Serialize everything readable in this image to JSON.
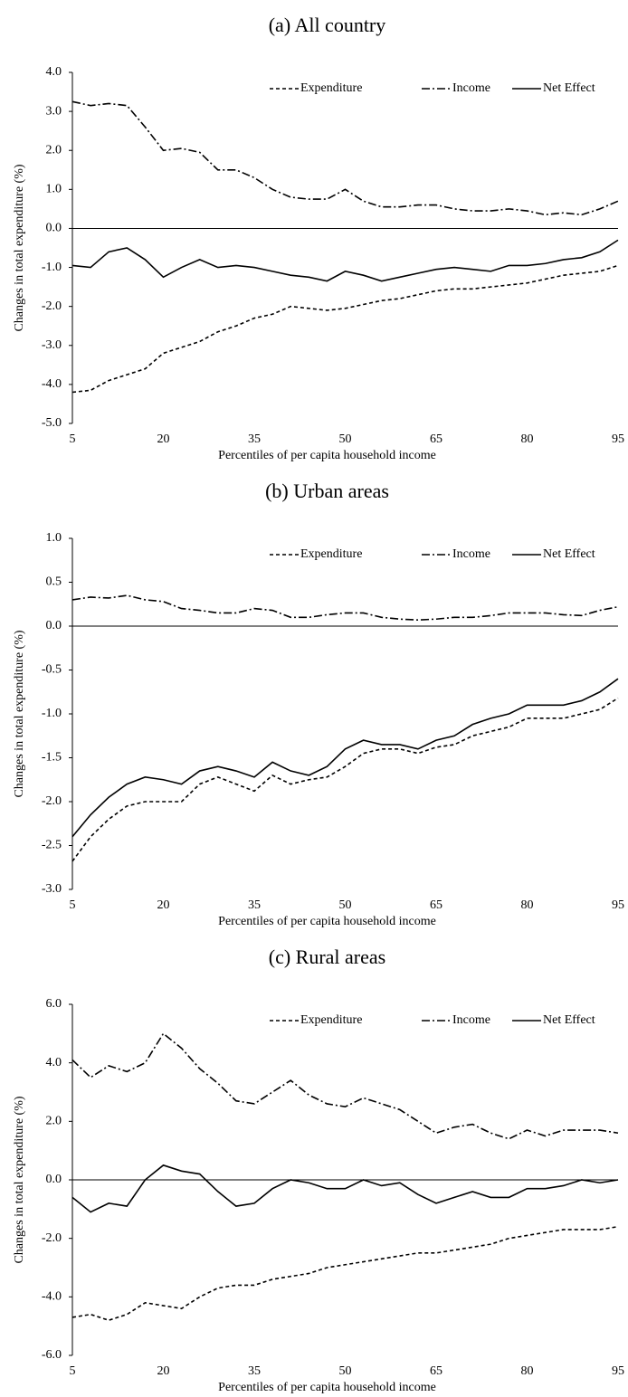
{
  "chart_data": [
    {
      "type": "line",
      "title": "(a) All country",
      "xlabel": "Percentiles of per capita household income",
      "ylabel": "Changes in total expenditure (%)",
      "x": [
        5,
        8,
        11,
        14,
        17,
        20,
        23,
        26,
        29,
        32,
        35,
        38,
        41,
        44,
        47,
        50,
        53,
        56,
        59,
        62,
        65,
        68,
        71,
        74,
        77,
        80,
        83,
        86,
        89,
        92,
        95
      ],
      "xlim": [
        5,
        95
      ],
      "xticks": [
        5,
        20,
        35,
        50,
        65,
        80,
        95
      ],
      "ylim": [
        -5,
        4
      ],
      "yticks": [
        {
          "value": 4,
          "label": "4.0"
        },
        {
          "value": 3,
          "label": "3.0"
        },
        {
          "value": 2,
          "label": "2.0"
        },
        {
          "value": 1,
          "label": "1.0"
        },
        {
          "value": 0,
          "label": "0.0"
        },
        {
          "value": -1,
          "label": "-1.0"
        },
        {
          "value": -2,
          "label": "-2.0"
        },
        {
          "value": -3,
          "label": "-3.0"
        },
        {
          "value": -4,
          "label": "-4.0"
        },
        {
          "value": -5,
          "label": "-5.0"
        }
      ],
      "series": [
        {
          "name": "Expenditure",
          "color": "#000000",
          "line_style": "dashed",
          "values": [
            -4.2,
            -4.15,
            -3.9,
            -3.75,
            -3.6,
            -3.2,
            -3.05,
            -2.9,
            -2.65,
            -2.5,
            -2.3,
            -2.2,
            -2.0,
            -2.05,
            -2.1,
            -2.05,
            -1.95,
            -1.85,
            -1.8,
            -1.7,
            -1.6,
            -1.55,
            -1.55,
            -1.5,
            -1.45,
            -1.4,
            -1.3,
            -1.2,
            -1.15,
            -1.1,
            -0.95
          ]
        },
        {
          "name": "Income",
          "color": "#000000",
          "line_style": "dashdot",
          "values": [
            3.25,
            3.15,
            3.2,
            3.15,
            2.6,
            2.0,
            2.05,
            1.95,
            1.5,
            1.5,
            1.3,
            1.0,
            0.8,
            0.75,
            0.75,
            1.0,
            0.7,
            0.55,
            0.55,
            0.6,
            0.6,
            0.5,
            0.45,
            0.45,
            0.5,
            0.45,
            0.35,
            0.4,
            0.35,
            0.5,
            0.7
          ]
        },
        {
          "name": "Net Effect",
          "color": "#000000",
          "line_style": "solid",
          "values": [
            -0.95,
            -1.0,
            -0.6,
            -0.5,
            -0.8,
            -1.25,
            -1.0,
            -0.8,
            -1.0,
            -0.95,
            -1.0,
            -1.1,
            -1.2,
            -1.25,
            -1.35,
            -1.1,
            -1.2,
            -1.35,
            -1.25,
            -1.15,
            -1.05,
            -1.0,
            -1.05,
            -1.1,
            -0.95,
            -0.95,
            -0.9,
            -0.8,
            -0.75,
            -0.6,
            -0.3
          ]
        }
      ],
      "legend": "top-right",
      "grid": false
    },
    {
      "type": "line",
      "title": "(b) Urban areas",
      "xlabel": "Percentiles of per capita household income",
      "ylabel": "Changes in total expenditure (%)",
      "x": [
        5,
        8,
        11,
        14,
        17,
        20,
        23,
        26,
        29,
        32,
        35,
        38,
        41,
        44,
        47,
        50,
        53,
        56,
        59,
        62,
        65,
        68,
        71,
        74,
        77,
        80,
        83,
        86,
        89,
        92,
        95
      ],
      "xlim": [
        5,
        95
      ],
      "xticks": [
        5,
        20,
        35,
        50,
        65,
        80,
        95
      ],
      "ylim": [
        -3,
        1
      ],
      "yticks": [
        {
          "value": 1,
          "label": "1.0"
        },
        0.5,
        {
          "value": 0,
          "label": "0.0"
        },
        -0.5,
        {
          "value": -1,
          "label": "-1.0"
        },
        -1.5,
        {
          "value": -2,
          "label": "-2.0"
        },
        -2.5,
        {
          "value": -3,
          "label": "-3.0"
        }
      ],
      "series": [
        {
          "name": "Expenditure",
          "color": "#000000",
          "line_style": "dashed",
          "values": [
            -2.68,
            -2.4,
            -2.2,
            -2.05,
            -2.0,
            -2.0,
            -2.0,
            -1.8,
            -1.72,
            -1.8,
            -1.88,
            -1.7,
            -1.8,
            -1.75,
            -1.72,
            -1.6,
            -1.45,
            -1.4,
            -1.4,
            -1.45,
            -1.38,
            -1.35,
            -1.25,
            -1.2,
            -1.15,
            -1.05,
            -1.05,
            -1.05,
            -1.0,
            -0.95,
            -0.82
          ]
        },
        {
          "name": "Income",
          "color": "#000000",
          "line_style": "dashdot",
          "values": [
            0.3,
            0.33,
            0.32,
            0.35,
            0.3,
            0.28,
            0.2,
            0.18,
            0.15,
            0.15,
            0.2,
            0.18,
            0.1,
            0.1,
            0.13,
            0.15,
            0.15,
            0.1,
            0.08,
            0.07,
            0.08,
            0.1,
            0.1,
            0.12,
            0.15,
            0.15,
            0.15,
            0.13,
            0.12,
            0.18,
            0.22
          ]
        },
        {
          "name": "Net Effect",
          "color": "#000000",
          "line_style": "solid",
          "values": [
            -2.4,
            -2.15,
            -1.95,
            -1.8,
            -1.72,
            -1.75,
            -1.8,
            -1.65,
            -1.6,
            -1.65,
            -1.72,
            -1.55,
            -1.65,
            -1.7,
            -1.6,
            -1.4,
            -1.3,
            -1.35,
            -1.35,
            -1.4,
            -1.3,
            -1.25,
            -1.12,
            -1.05,
            -1.0,
            -0.9,
            -0.9,
            -0.9,
            -0.85,
            -0.75,
            -0.6
          ]
        }
      ],
      "legend": "top-right",
      "grid": false
    },
    {
      "type": "line",
      "title": "(c) Rural areas",
      "xlabel": "Percentiles of per capita household income",
      "ylabel": "Changes in total expenditure (%)",
      "x": [
        5,
        8,
        11,
        14,
        17,
        20,
        23,
        26,
        29,
        32,
        35,
        38,
        41,
        44,
        47,
        50,
        53,
        56,
        59,
        62,
        65,
        68,
        71,
        74,
        77,
        80,
        83,
        86,
        89,
        92,
        95
      ],
      "xlim": [
        5,
        95
      ],
      "xticks": [
        5,
        20,
        35,
        50,
        65,
        80,
        95
      ],
      "ylim": [
        -6,
        6
      ],
      "yticks": [
        {
          "value": 6,
          "label": "6.0"
        },
        {
          "value": 4,
          "label": "4.0"
        },
        {
          "value": 2,
          "label": "2.0"
        },
        {
          "value": 0,
          "label": "0.0"
        },
        {
          "value": -2,
          "label": "-2.0"
        },
        {
          "value": -4,
          "label": "-4.0"
        },
        {
          "value": -6,
          "label": "-6.0"
        }
      ],
      "series": [
        {
          "name": "Expenditure",
          "color": "#000000",
          "line_style": "dashed",
          "values": [
            -4.7,
            -4.6,
            -4.8,
            -4.6,
            -4.2,
            -4.3,
            -4.4,
            -4.0,
            -3.7,
            -3.6,
            -3.6,
            -3.4,
            -3.3,
            -3.2,
            -3.0,
            -2.9,
            -2.8,
            -2.7,
            -2.6,
            -2.5,
            -2.5,
            -2.4,
            -2.3,
            -2.2,
            -2.0,
            -1.9,
            -1.8,
            -1.7,
            -1.7,
            -1.7,
            -1.6
          ]
        },
        {
          "name": "Income",
          "color": "#000000",
          "line_style": "dashdot",
          "values": [
            4.1,
            3.5,
            3.9,
            3.7,
            4.0,
            5.0,
            4.5,
            3.8,
            3.3,
            2.7,
            2.6,
            3.0,
            3.4,
            2.9,
            2.6,
            2.5,
            2.8,
            2.6,
            2.4,
            2.0,
            1.6,
            1.8,
            1.9,
            1.6,
            1.4,
            1.7,
            1.5,
            1.7,
            1.7,
            1.7,
            1.6
          ]
        },
        {
          "name": "Net Effect",
          "color": "#000000",
          "line_style": "solid",
          "values": [
            -0.6,
            -1.1,
            -0.8,
            -0.9,
            0.0,
            0.5,
            0.3,
            0.2,
            -0.4,
            -0.9,
            -0.8,
            -0.3,
            0.0,
            -0.1,
            -0.3,
            -0.3,
            0.0,
            -0.2,
            -0.1,
            -0.5,
            -0.8,
            -0.6,
            -0.4,
            -0.6,
            -0.6,
            -0.3,
            -0.3,
            -0.2,
            0.0,
            -0.1,
            0.0
          ]
        }
      ],
      "legend": "top-right",
      "grid": false
    }
  ]
}
